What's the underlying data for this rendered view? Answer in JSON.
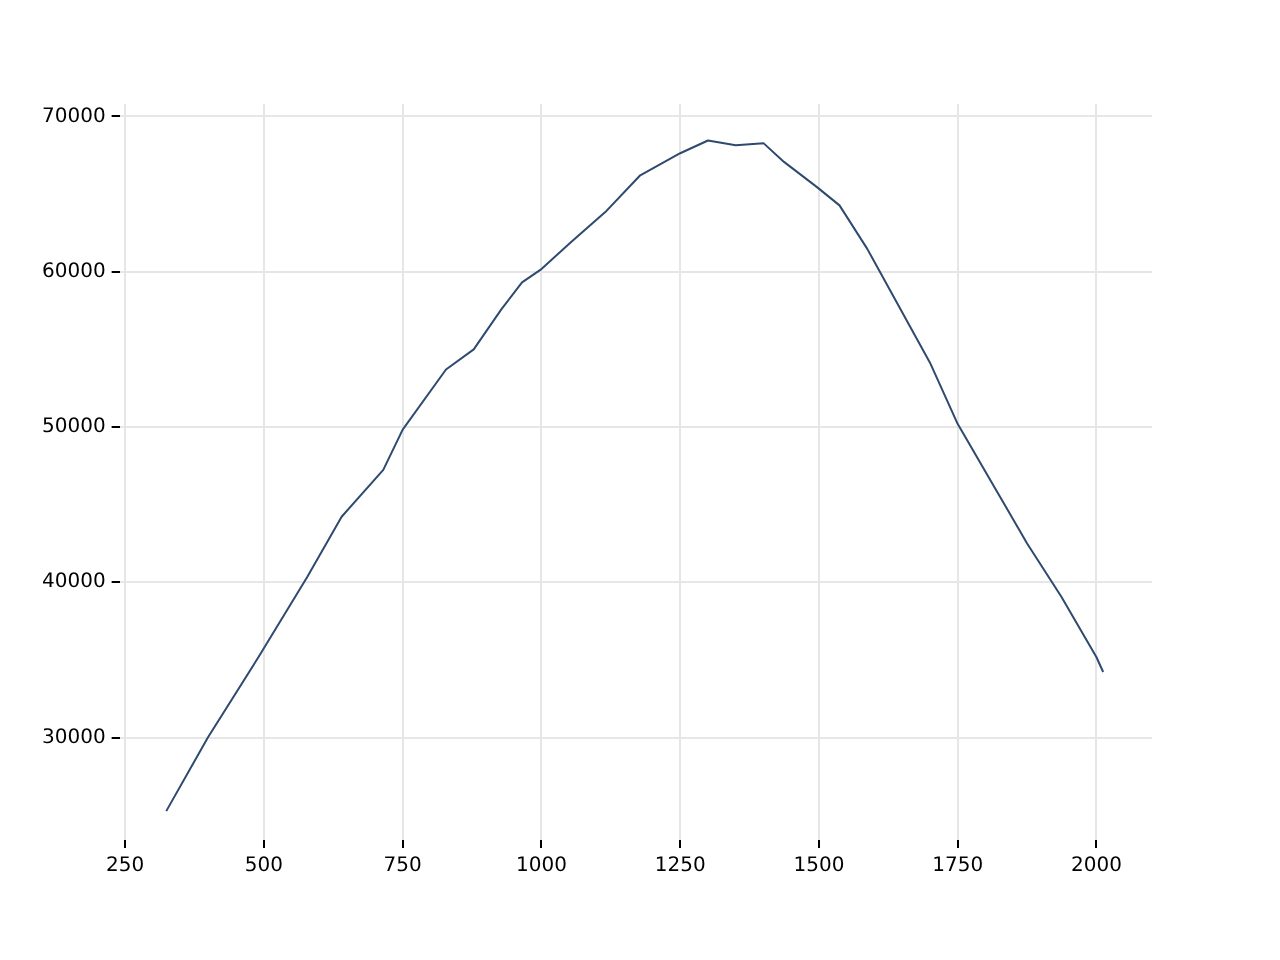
{
  "chart_data": {
    "type": "line",
    "x": [
      324,
      399,
      490,
      578,
      640,
      715,
      750,
      828,
      878,
      928,
      965,
      1000,
      1053,
      1115,
      1178,
      1250,
      1300,
      1350,
      1400,
      1437,
      1497,
      1537,
      1587,
      1637,
      1700,
      1749,
      1812,
      1875,
      1937,
      2000,
      2012
    ],
    "series": [
      {
        "color": "#2e4a6e",
        "values": [
          25260,
          30000,
          35170,
          40340,
          44220,
          47240,
          49830,
          53700,
          55000,
          57590,
          59310,
          60170,
          61900,
          63840,
          66210,
          67630,
          68450,
          68150,
          68280,
          67070,
          65430,
          64270,
          61470,
          58230,
          54140,
          50260,
          46380,
          42500,
          39050,
          35170,
          34220
        ]
      }
    ],
    "xlim": [
      240,
      2100
    ],
    "xticks": [
      250,
      500,
      750,
      1000,
      1250,
      1500,
      1750,
      2000
    ],
    "ylim": [
      23400,
      70800
    ],
    "yticks": [
      30000,
      40000,
      50000,
      60000,
      70000
    ],
    "grid": true,
    "legend": false,
    "marker": "none",
    "line_style": "solid"
  }
}
